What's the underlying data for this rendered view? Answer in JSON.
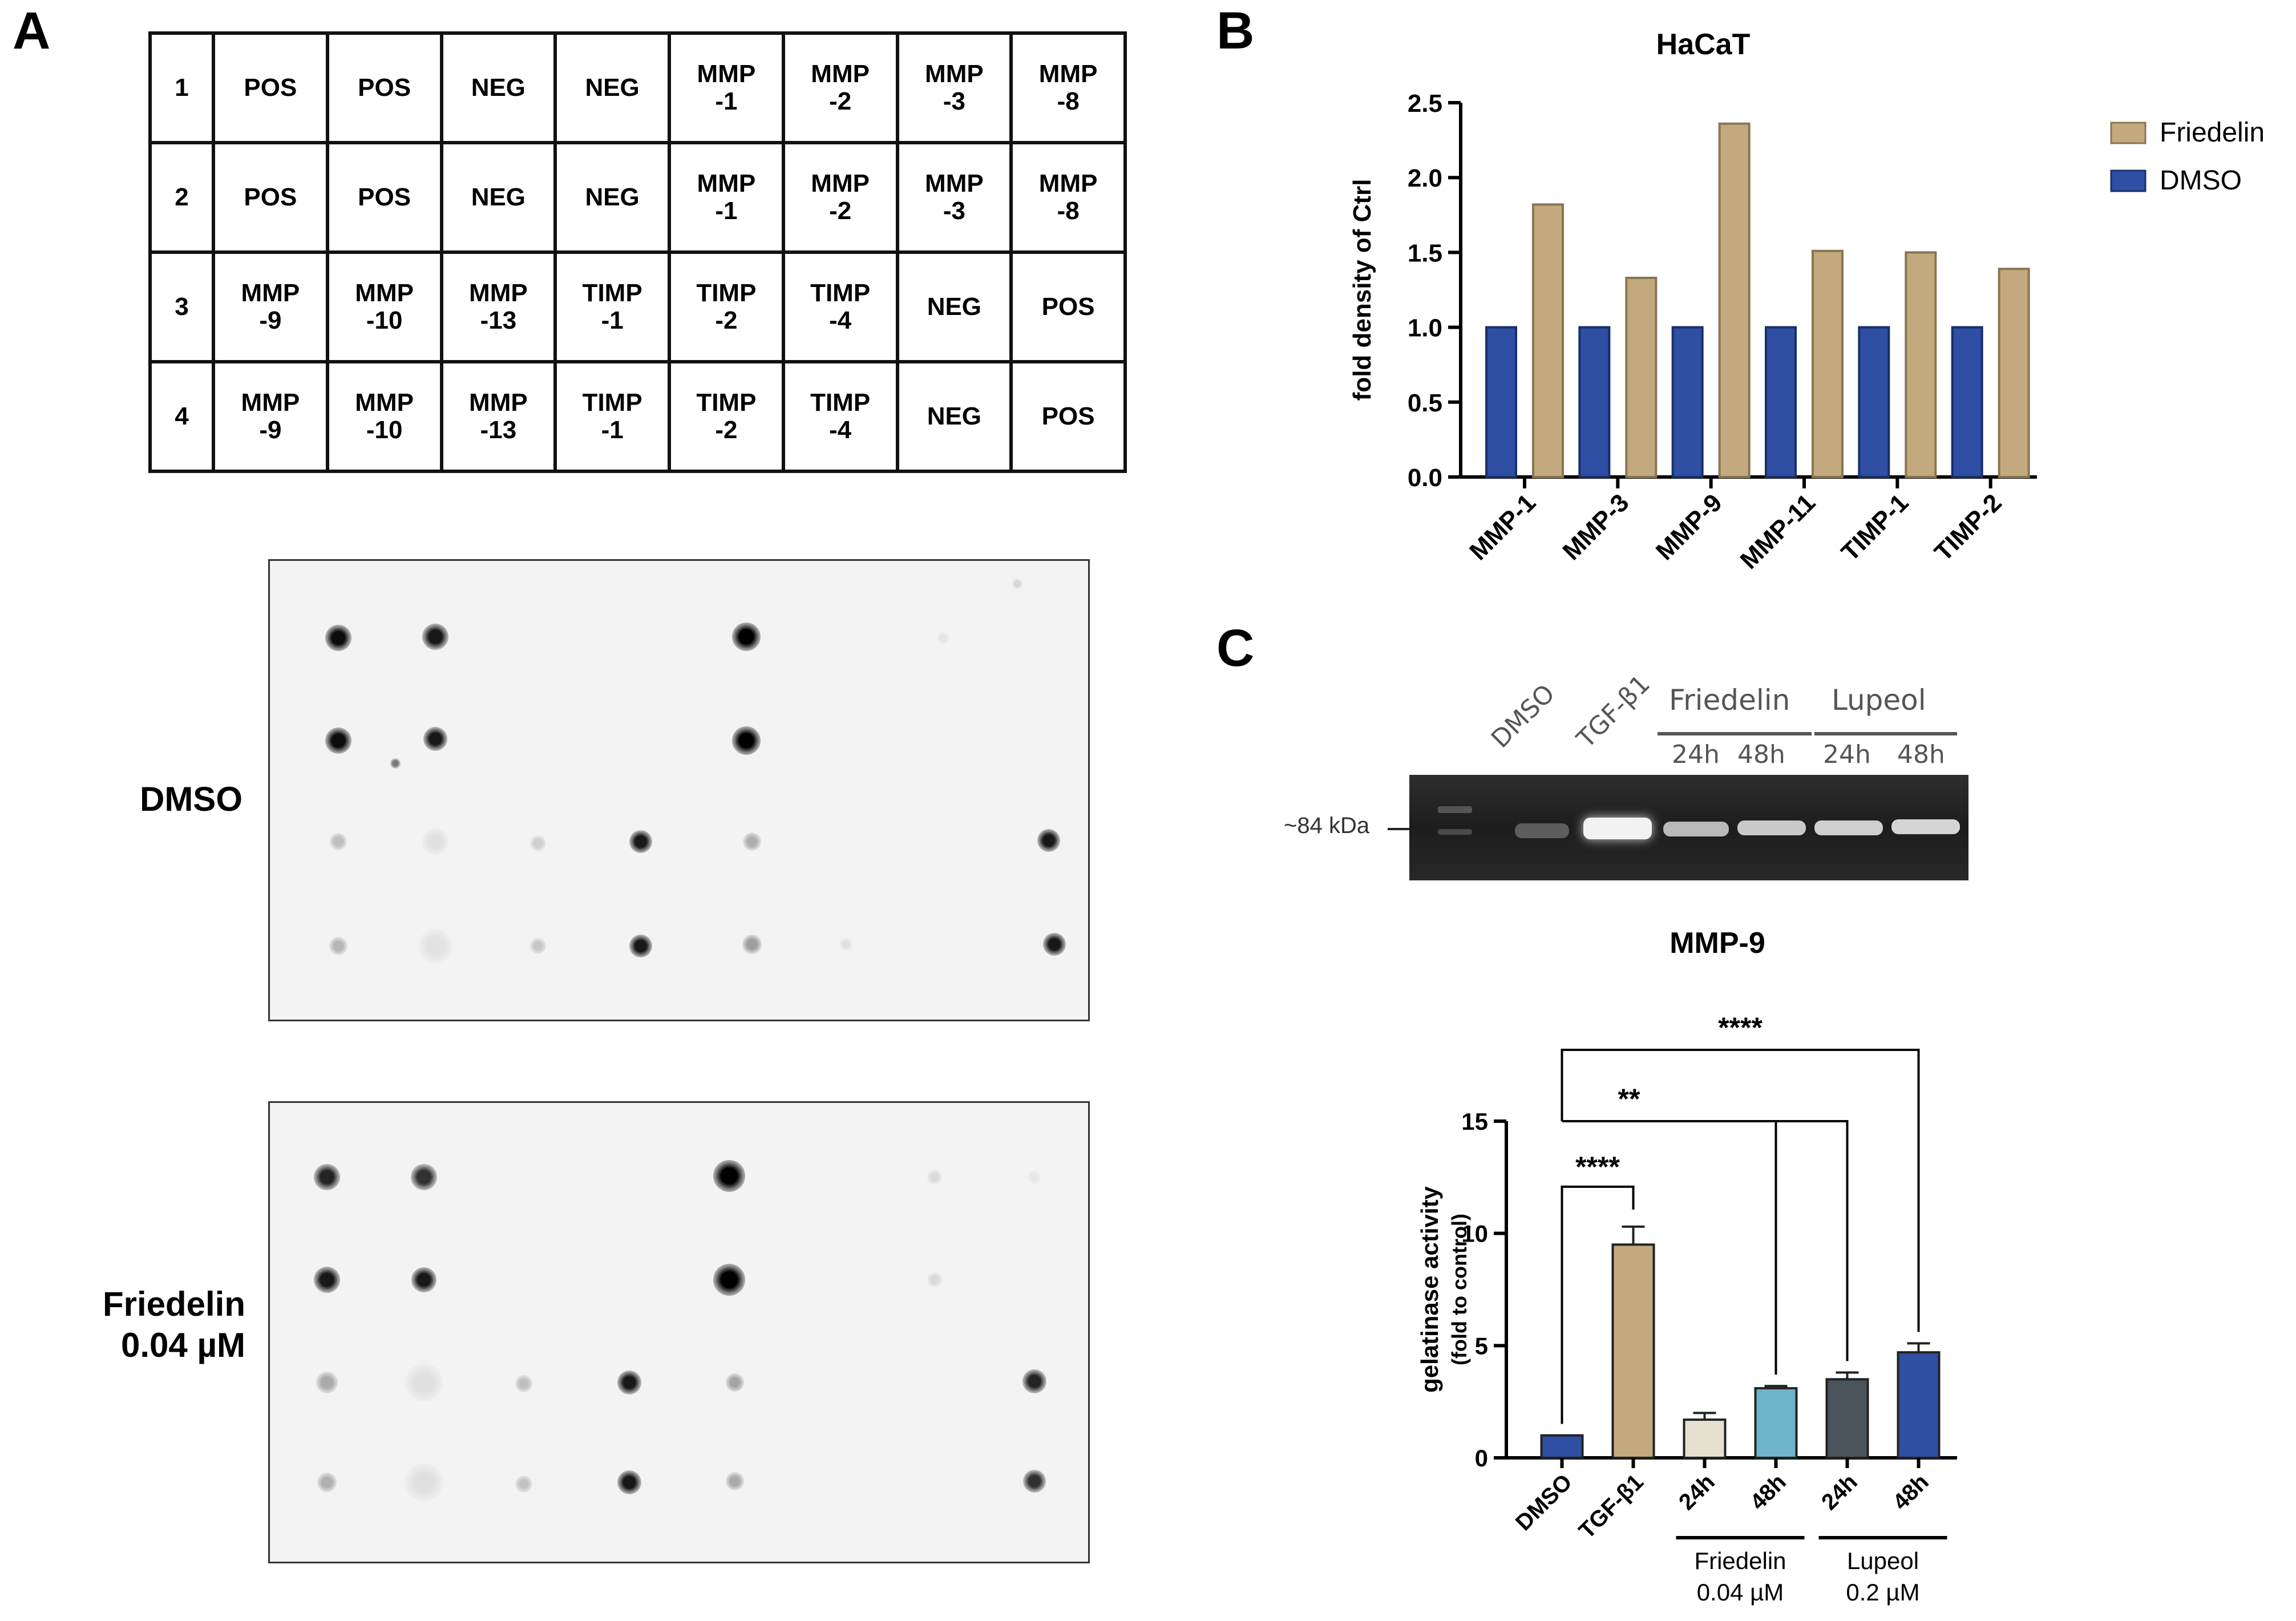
{
  "panels": {
    "a": "A",
    "b": "B",
    "c": "C"
  },
  "layout_table": {
    "rows": [
      {
        "num": "1",
        "cells": [
          "POS",
          "POS",
          "NEG",
          "NEG",
          "MMP\n-1",
          "MMP\n-2",
          "MMP\n-3",
          "MMP\n-8"
        ]
      },
      {
        "num": "2",
        "cells": [
          "POS",
          "POS",
          "NEG",
          "NEG",
          "MMP\n-1",
          "MMP\n-2",
          "MMP\n-3",
          "MMP\n-8"
        ]
      },
      {
        "num": "3",
        "cells": [
          "MMP\n-9",
          "MMP\n-10",
          "MMP\n-13",
          "TIMP\n-1",
          "TIMP\n-2",
          "TIMP\n-4",
          "NEG",
          "POS"
        ]
      },
      {
        "num": "4",
        "cells": [
          "MMP\n-9",
          "MMP\n-10",
          "MMP\n-13",
          "TIMP\n-1",
          "TIMP\n-2",
          "TIMP\n-4",
          "NEG",
          "POS"
        ]
      }
    ]
  },
  "blots": {
    "dmso_label": "DMSO",
    "friedelin_label_line1": "Friedelin",
    "friedelin_label_line2": "0.04 µM"
  },
  "gel": {
    "lane_dmso": "DMSO",
    "lane_tgf": "TGF-β1",
    "group_friedelin": "Friedelin",
    "group_lupeol": "Lupeol",
    "t24_a": "24h",
    "t48_a": "48h",
    "t24_b": "24h",
    "t48_b": "48h",
    "marker": "~84 kDa"
  },
  "chart_data": [
    {
      "type": "bar",
      "title": "HaCaT",
      "xlabel": "",
      "ylabel": "fold density of Ctrl",
      "categories": [
        "MMP-1",
        "MMP-3",
        "MMP-9",
        "MMP-11",
        "TIMP-1",
        "TIMP-2"
      ],
      "series": [
        {
          "name": "DMSO",
          "color": "#2e4fa3",
          "values": [
            1.0,
            1.0,
            1.0,
            1.0,
            1.0,
            1.0
          ]
        },
        {
          "name": "Friedelin",
          "color": "#c2a97e",
          "values": [
            1.82,
            1.33,
            2.36,
            1.51,
            1.5,
            1.39
          ]
        }
      ],
      "legend": [
        "Friedelin",
        "DMSO"
      ],
      "ylim": [
        0,
        2.5
      ],
      "yticks": [
        "0.0",
        "0.5",
        "1.0",
        "1.5",
        "2.0",
        "2.5"
      ]
    },
    {
      "type": "bar",
      "title": "MMP-9",
      "ylabel_line1": "gelatinase activity",
      "ylabel_line2": "(fold to control)",
      "categories": [
        "DMSO",
        "TGF-β1",
        "24h",
        "48h",
        "24h",
        "48h"
      ],
      "values": [
        1.0,
        9.5,
        1.7,
        3.1,
        3.5,
        4.7
      ],
      "errors": [
        0.0,
        0.8,
        0.3,
        0.1,
        0.3,
        0.4
      ],
      "colors": [
        "#2e4fa3",
        "#c2a97e",
        "#e6e0d0",
        "#6fb3cc",
        "#4b535c",
        "#2e4fa3"
      ],
      "ylim": [
        0,
        15
      ],
      "yticks": [
        "0",
        "5",
        "10",
        "15"
      ],
      "groups": [
        {
          "label_line1": "Friedelin",
          "label_line2": "0.04 µM"
        },
        {
          "label_line1": "Lupeol",
          "label_line2": "0.2 µM"
        }
      ],
      "significance": [
        {
          "label": "****",
          "from": "DMSO",
          "to": "TGF-β1"
        },
        {
          "label": "**",
          "from": "DMSO",
          "to": "48h Friedelin / 24h Lupeol"
        },
        {
          "label": "****",
          "from": "DMSO",
          "to": "48h Lupeol"
        }
      ]
    }
  ]
}
